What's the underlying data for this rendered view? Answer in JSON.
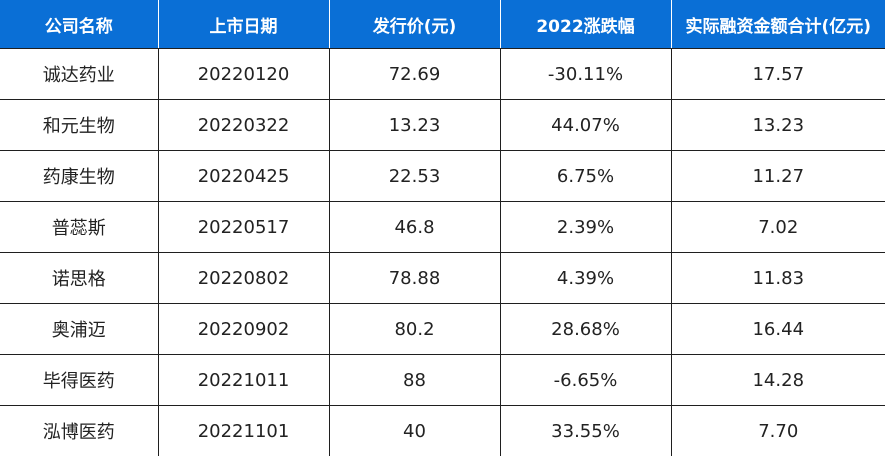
{
  "colors": {
    "header_background": "#0a6fd6",
    "header_text": "#ffffff",
    "border": "#1f1f1f",
    "body_text": "#222222"
  },
  "table": {
    "headers": [
      "公司名称",
      "上市日期",
      "发行价(元)",
      "2022涨跌幅",
      "实际融资金额合计(亿元)"
    ],
    "rows": [
      [
        "诚达药业",
        "20220120",
        "72.69",
        "-30.11%",
        "17.57"
      ],
      [
        "和元生物",
        "20220322",
        "13.23",
        "44.07%",
        "13.23"
      ],
      [
        "药康生物",
        "20220425",
        "22.53",
        "6.75%",
        "11.27"
      ],
      [
        "普蕊斯",
        "20220517",
        "46.8",
        "2.39%",
        "7.02"
      ],
      [
        "诺思格",
        "20220802",
        "78.88",
        "4.39%",
        "11.83"
      ],
      [
        "奥浦迈",
        "20220902",
        "80.2",
        "28.68%",
        "16.44"
      ],
      [
        "毕得医药",
        "20221011",
        "88",
        "-6.65%",
        "14.28"
      ],
      [
        "泓博医药",
        "20221101",
        "40",
        "33.55%",
        "7.70"
      ]
    ]
  }
}
